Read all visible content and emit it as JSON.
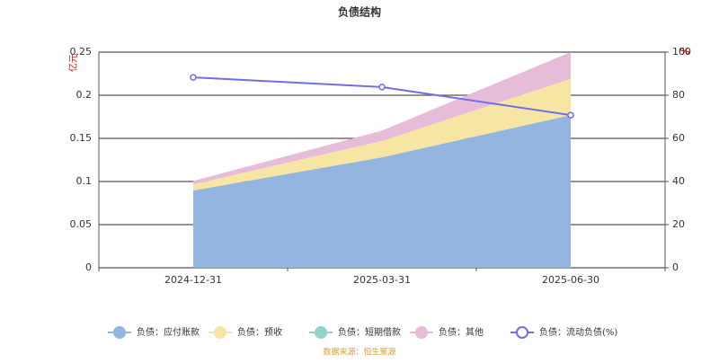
{
  "chart_data": {
    "type": "stacked_area",
    "title": "负债结构",
    "y_label": "亿元",
    "y2_label": "%",
    "source": "数据来源：恒生聚源",
    "categories": [
      "2024-12-31",
      "2025-03-31",
      "2025-06-30"
    ],
    "ylim": [
      0,
      0.25
    ],
    "yticks": [
      0,
      0.05,
      0.1,
      0.15,
      0.2,
      0.25
    ],
    "y2lim": [
      0,
      100
    ],
    "y2ticks": [
      0,
      20,
      40,
      60,
      80,
      100
    ],
    "grid": true,
    "series": [
      {
        "name": "负债：应付账款",
        "color": "#93b5e0",
        "values": [
          0.0896,
          0.128,
          0.177
        ]
      },
      {
        "name": "负债：预收",
        "color": "#f7e6a3",
        "values": [
          0.007,
          0.019,
          0.042
        ]
      },
      {
        "name": "负债：短期借款",
        "color": "#8fd3cc",
        "values": [
          0,
          0,
          0
        ]
      },
      {
        "name": "负债：其他",
        "color": "#e6bcd9",
        "values": [
          0.004,
          0.012,
          0.031
        ]
      },
      {
        "name": "负债：流动负债(%)",
        "color": "#6f6ee8",
        "axis": "y2",
        "values": [
          88.3,
          83.8,
          70.8
        ]
      }
    ]
  }
}
